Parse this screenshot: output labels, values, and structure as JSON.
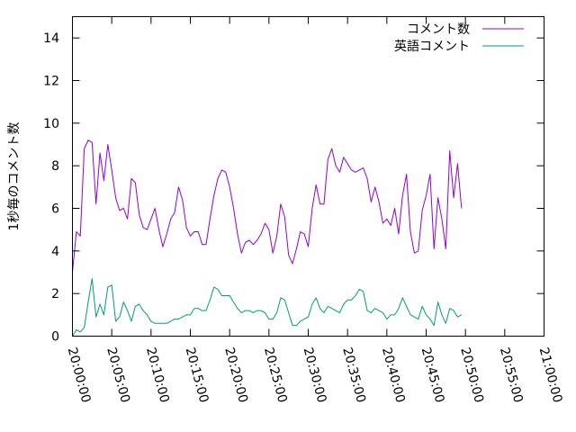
{
  "chart_data": {
    "type": "line",
    "title": "",
    "xlabel": "",
    "ylabel": "1秒毎のコメント数",
    "xlim": [
      "20:00:00",
      "21:00:00"
    ],
    "ylim": [
      0,
      15
    ],
    "yticks": [
      "0",
      "2",
      "4",
      "6",
      "8",
      "10",
      "12",
      "14"
    ],
    "xticks": [
      "20:00:00",
      "20:05:00",
      "20:10:00",
      "20:15:00",
      "20:20:00",
      "20:25:00",
      "20:30:00",
      "20:35:00",
      "20:40:00",
      "20:45:00",
      "20:50:00",
      "20:55:00",
      "21:00:00"
    ],
    "grid": false,
    "legend": "top-right",
    "series": [
      {
        "name": "コメント数",
        "color": "#9400d3",
        "points": [
          [
            "20:00:00",
            3.0
          ],
          [
            "20:00:30",
            4.9
          ],
          [
            "20:01:00",
            4.7
          ],
          [
            "20:01:30",
            8.8
          ],
          [
            "20:02:00",
            9.2
          ],
          [
            "20:02:30",
            9.1
          ],
          [
            "20:03:00",
            6.2
          ],
          [
            "20:03:30",
            8.6
          ],
          [
            "20:04:00",
            7.3
          ],
          [
            "20:04:30",
            9.0
          ],
          [
            "20:05:00",
            7.8
          ],
          [
            "20:05:30",
            6.5
          ],
          [
            "20:06:00",
            5.9
          ],
          [
            "20:06:30",
            6.0
          ],
          [
            "20:07:00",
            5.5
          ],
          [
            "20:07:30",
            7.4
          ],
          [
            "20:08:00",
            7.2
          ],
          [
            "20:08:30",
            5.7
          ],
          [
            "20:09:00",
            5.1
          ],
          [
            "20:09:30",
            5.0
          ],
          [
            "20:10:00",
            5.5
          ],
          [
            "20:10:30",
            6.0
          ],
          [
            "20:11:00",
            5.0
          ],
          [
            "20:11:30",
            4.2
          ],
          [
            "20:12:00",
            4.8
          ],
          [
            "20:12:30",
            5.5
          ],
          [
            "20:13:00",
            5.8
          ],
          [
            "20:13:30",
            7.0
          ],
          [
            "20:14:00",
            6.4
          ],
          [
            "20:14:30",
            5.1
          ],
          [
            "20:15:00",
            4.7
          ],
          [
            "20:15:30",
            4.9
          ],
          [
            "20:16:00",
            4.9
          ],
          [
            "20:16:30",
            4.3
          ],
          [
            "20:17:00",
            4.3
          ],
          [
            "20:17:30",
            5.5
          ],
          [
            "20:18:00",
            6.6
          ],
          [
            "20:18:30",
            7.4
          ],
          [
            "20:19:00",
            7.8
          ],
          [
            "20:19:30",
            7.7
          ],
          [
            "20:20:00",
            7.0
          ],
          [
            "20:20:30",
            6.0
          ],
          [
            "20:21:00",
            4.8
          ],
          [
            "20:21:30",
            3.9
          ],
          [
            "20:22:00",
            4.4
          ],
          [
            "20:22:30",
            4.5
          ],
          [
            "20:23:00",
            4.3
          ],
          [
            "20:23:30",
            4.5
          ],
          [
            "20:24:00",
            4.8
          ],
          [
            "20:24:30",
            5.3
          ],
          [
            "20:25:00",
            5.0
          ],
          [
            "20:25:30",
            3.9
          ],
          [
            "20:26:00",
            4.7
          ],
          [
            "20:26:30",
            6.2
          ],
          [
            "20:27:00",
            5.6
          ],
          [
            "20:27:30",
            3.8
          ],
          [
            "20:28:00",
            3.4
          ],
          [
            "20:28:30",
            4.1
          ],
          [
            "20:29:00",
            4.9
          ],
          [
            "20:29:30",
            4.8
          ],
          [
            "20:30:00",
            4.2
          ],
          [
            "20:30:30",
            6.0
          ],
          [
            "20:31:00",
            7.1
          ],
          [
            "20:31:30",
            6.2
          ],
          [
            "20:32:00",
            6.2
          ],
          [
            "20:32:30",
            8.3
          ],
          [
            "20:33:00",
            8.8
          ],
          [
            "20:33:30",
            8.0
          ],
          [
            "20:34:00",
            7.7
          ],
          [
            "20:34:30",
            8.4
          ],
          [
            "20:35:00",
            8.1
          ],
          [
            "20:35:30",
            7.8
          ],
          [
            "20:36:00",
            7.7
          ],
          [
            "20:36:30",
            7.8
          ],
          [
            "20:37:00",
            7.9
          ],
          [
            "20:37:30",
            7.4
          ],
          [
            "20:38:00",
            6.3
          ],
          [
            "20:38:30",
            7.0
          ],
          [
            "20:39:00",
            6.3
          ],
          [
            "20:39:30",
            5.3
          ],
          [
            "20:40:00",
            5.5
          ],
          [
            "20:40:30",
            5.2
          ],
          [
            "20:41:00",
            6.0
          ],
          [
            "20:41:30",
            4.8
          ],
          [
            "20:42:00",
            6.6
          ],
          [
            "20:42:30",
            7.6
          ],
          [
            "20:43:00",
            4.9
          ],
          [
            "20:43:30",
            3.9
          ],
          [
            "20:44:00",
            4.0
          ],
          [
            "20:44:30",
            5.9
          ],
          [
            "20:45:00",
            6.6
          ],
          [
            "20:45:30",
            7.6
          ],
          [
            "20:46:00",
            4.1
          ],
          [
            "20:46:30",
            6.5
          ],
          [
            "20:47:00",
            5.5
          ],
          [
            "20:47:30",
            4.1
          ],
          [
            "20:48:00",
            8.7
          ],
          [
            "20:48:30",
            6.5
          ],
          [
            "20:49:00",
            8.1
          ],
          [
            "20:49:30",
            6.0
          ]
        ]
      },
      {
        "name": "英語コメント",
        "color": "#009e73",
        "points": [
          [
            "20:00:00",
            0.0
          ],
          [
            "20:00:30",
            0.3
          ],
          [
            "20:01:00",
            0.2
          ],
          [
            "20:01:30",
            0.4
          ],
          [
            "20:02:00",
            1.6
          ],
          [
            "20:02:30",
            2.7
          ],
          [
            "20:03:00",
            0.9
          ],
          [
            "20:03:30",
            1.5
          ],
          [
            "20:04:00",
            1.0
          ],
          [
            "20:04:30",
            2.3
          ],
          [
            "20:05:00",
            2.4
          ],
          [
            "20:05:30",
            0.7
          ],
          [
            "20:06:00",
            0.9
          ],
          [
            "20:06:30",
            1.6
          ],
          [
            "20:07:00",
            1.2
          ],
          [
            "20:07:30",
            0.7
          ],
          [
            "20:08:00",
            1.4
          ],
          [
            "20:08:30",
            1.5
          ],
          [
            "20:09:00",
            1.2
          ],
          [
            "20:09:30",
            1.0
          ],
          [
            "20:10:00",
            0.7
          ],
          [
            "20:10:30",
            0.6
          ],
          [
            "20:11:00",
            0.6
          ],
          [
            "20:11:30",
            0.6
          ],
          [
            "20:12:00",
            0.6
          ],
          [
            "20:12:30",
            0.7
          ],
          [
            "20:13:00",
            0.8
          ],
          [
            "20:13:30",
            0.8
          ],
          [
            "20:14:00",
            0.9
          ],
          [
            "20:14:30",
            1.0
          ],
          [
            "20:15:00",
            1.0
          ],
          [
            "20:15:30",
            1.3
          ],
          [
            "20:16:00",
            1.3
          ],
          [
            "20:16:30",
            1.2
          ],
          [
            "20:17:00",
            1.2
          ],
          [
            "20:17:30",
            1.7
          ],
          [
            "20:18:00",
            2.3
          ],
          [
            "20:18:30",
            2.2
          ],
          [
            "20:19:00",
            1.9
          ],
          [
            "20:19:30",
            1.9
          ],
          [
            "20:20:00",
            1.9
          ],
          [
            "20:20:30",
            1.6
          ],
          [
            "20:21:00",
            1.3
          ],
          [
            "20:21:30",
            1.1
          ],
          [
            "20:22:00",
            1.2
          ],
          [
            "20:22:30",
            1.2
          ],
          [
            "20:23:00",
            1.1
          ],
          [
            "20:23:30",
            1.2
          ],
          [
            "20:24:00",
            1.2
          ],
          [
            "20:24:30",
            1.1
          ],
          [
            "20:25:00",
            0.8
          ],
          [
            "20:25:30",
            0.8
          ],
          [
            "20:26:00",
            1.1
          ],
          [
            "20:26:30",
            1.8
          ],
          [
            "20:27:00",
            1.7
          ],
          [
            "20:27:30",
            1.1
          ],
          [
            "20:28:00",
            0.5
          ],
          [
            "20:28:30",
            0.5
          ],
          [
            "20:29:00",
            0.7
          ],
          [
            "20:29:30",
            0.8
          ],
          [
            "20:30:00",
            0.9
          ],
          [
            "20:30:30",
            1.5
          ],
          [
            "20:31:00",
            1.8
          ],
          [
            "20:31:30",
            1.3
          ],
          [
            "20:32:00",
            1.1
          ],
          [
            "20:32:30",
            1.4
          ],
          [
            "20:33:00",
            1.3
          ],
          [
            "20:33:30",
            1.2
          ],
          [
            "20:34:00",
            1.1
          ],
          [
            "20:34:30",
            1.5
          ],
          [
            "20:35:00",
            1.7
          ],
          [
            "20:35:30",
            1.7
          ],
          [
            "20:36:00",
            1.9
          ],
          [
            "20:36:30",
            2.2
          ],
          [
            "20:37:00",
            2.1
          ],
          [
            "20:37:30",
            1.2
          ],
          [
            "20:38:00",
            1.1
          ],
          [
            "20:38:30",
            1.3
          ],
          [
            "20:39:00",
            1.2
          ],
          [
            "20:39:30",
            1.1
          ],
          [
            "20:40:00",
            0.8
          ],
          [
            "20:40:30",
            1.0
          ],
          [
            "20:41:00",
            1.0
          ],
          [
            "20:41:30",
            1.3
          ],
          [
            "20:42:00",
            1.8
          ],
          [
            "20:42:30",
            1.4
          ],
          [
            "20:43:00",
            1.0
          ],
          [
            "20:43:30",
            0.9
          ],
          [
            "20:44:00",
            0.8
          ],
          [
            "20:44:30",
            1.4
          ],
          [
            "20:45:00",
            1.0
          ],
          [
            "20:45:30",
            0.8
          ],
          [
            "20:46:00",
            0.5
          ],
          [
            "20:46:30",
            1.6
          ],
          [
            "20:47:00",
            1.0
          ],
          [
            "20:47:30",
            0.6
          ],
          [
            "20:48:00",
            1.3
          ],
          [
            "20:48:30",
            1.2
          ],
          [
            "20:49:00",
            0.9
          ],
          [
            "20:49:30",
            1.0
          ]
        ]
      }
    ]
  }
}
